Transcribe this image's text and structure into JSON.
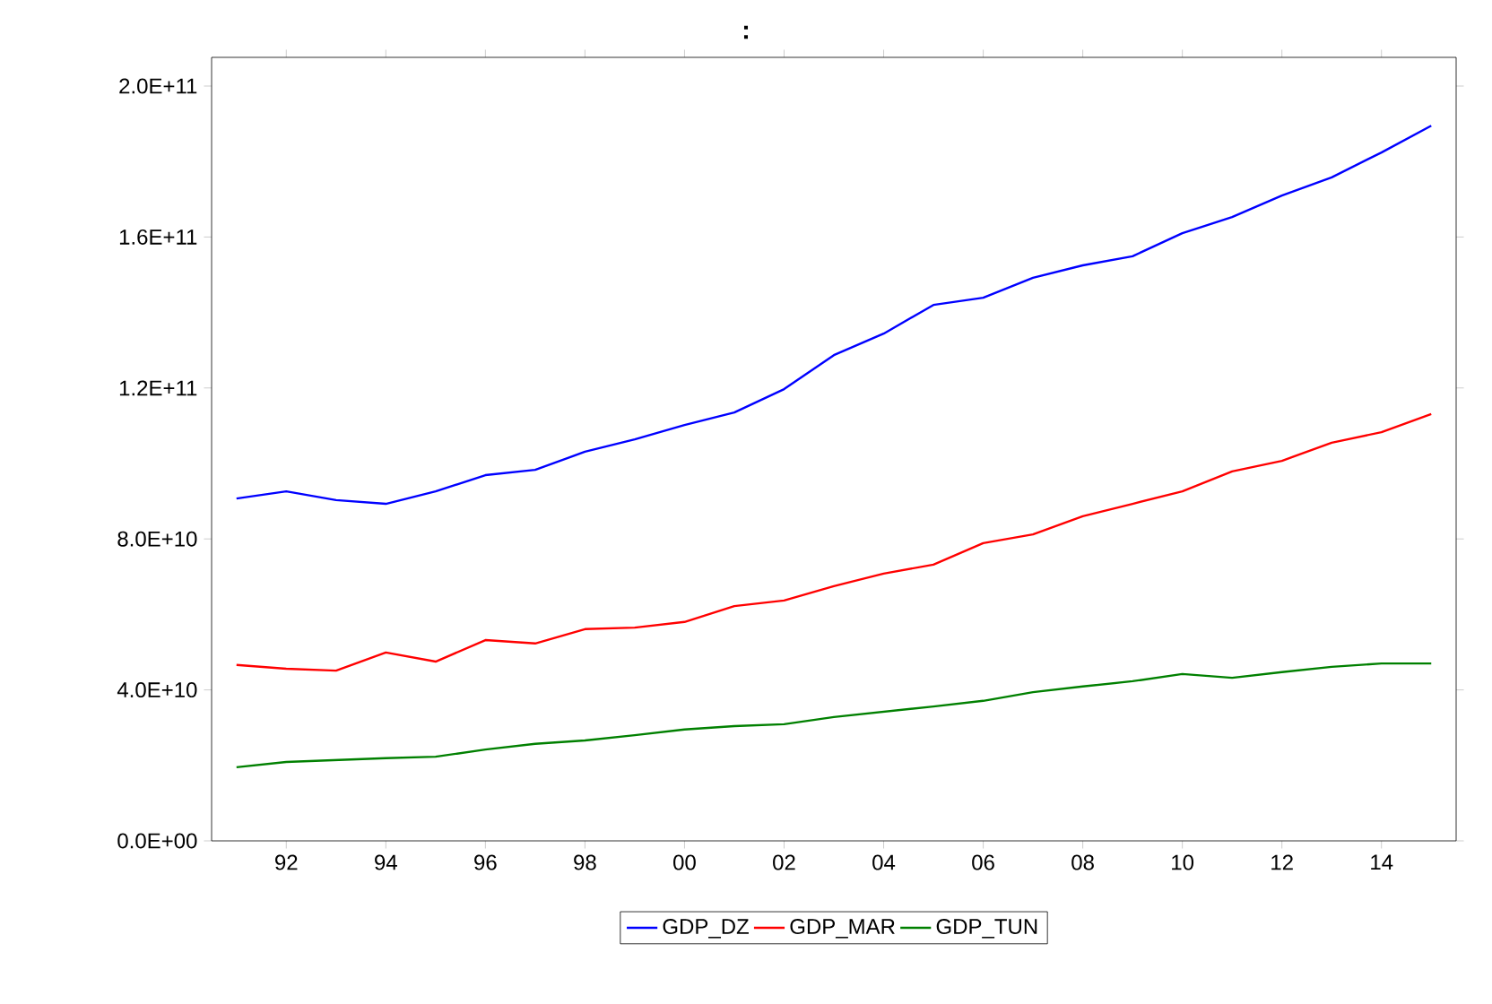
{
  "chart_data": {
    "type": "line",
    "title": ":",
    "x": [
      1991,
      1992,
      1993,
      1994,
      1995,
      1996,
      1997,
      1998,
      1999,
      2000,
      2001,
      2002,
      2003,
      2004,
      2005,
      2006,
      2007,
      2008,
      2009,
      2010,
      2011,
      2012,
      2013,
      2014,
      2015
    ],
    "series": [
      {
        "name": "GDP_DZ",
        "color": "#0000ff",
        "values": [
          90700000000.0,
          92600000000.0,
          90300000000.0,
          89300000000.0,
          92600000000.0,
          96900000000.0,
          98300000000.0,
          103100000000.0,
          106400000000.0,
          110200000000.0,
          113500000000.0,
          119700000000.0,
          128700000000.0,
          134400000000.0,
          142000000000.0,
          143900000000.0,
          149200000000.0,
          152500000000.0,
          154900000000.0,
          161000000000.0,
          165300000000.0,
          171000000000.0,
          175800000000.0,
          182400000000.0,
          189500000000.0
        ]
      },
      {
        "name": "GDP_MAR",
        "color": "#ff0000",
        "values": [
          46600000000.0,
          45600000000.0,
          45100000000.0,
          49900000000.0,
          47500000000.0,
          53200000000.0,
          52300000000.0,
          56100000000.0,
          56500000000.0,
          58000000000.0,
          62200000000.0,
          63700000000.0,
          67500000000.0,
          70800000000.0,
          73200000000.0,
          78900000000.0,
          81200000000.0,
          86000000000.0,
          89300000000.0,
          92600000000.0,
          97900000000.0,
          100700000000.0,
          105500000000.0,
          108300000000.0,
          113100000000.0
        ]
      },
      {
        "name": "GDP_TUN",
        "color": "#008000",
        "values": [
          19500000000.0,
          20900000000.0,
          21400000000.0,
          21900000000.0,
          22300000000.0,
          24200000000.0,
          25700000000.0,
          26600000000.0,
          28000000000.0,
          29500000000.0,
          30400000000.0,
          30900000000.0,
          32800000000.0,
          34200000000.0,
          35600000000.0,
          37100000000.0,
          39400000000.0,
          40900000000.0,
          42300000000.0,
          44200000000.0,
          43200000000.0,
          44700000000.0,
          46100000000.0,
          47000000000.0,
          47000000000.0
        ]
      }
    ],
    "xlim": [
      1990.5,
      2015.5
    ],
    "xticks": [
      {
        "value": 1992,
        "label": "92"
      },
      {
        "value": 1994,
        "label": "94"
      },
      {
        "value": 1996,
        "label": "96"
      },
      {
        "value": 1998,
        "label": "98"
      },
      {
        "value": 2000,
        "label": "00"
      },
      {
        "value": 2002,
        "label": "02"
      },
      {
        "value": 2004,
        "label": "04"
      },
      {
        "value": 2006,
        "label": "06"
      },
      {
        "value": 2008,
        "label": "08"
      },
      {
        "value": 2010,
        "label": "10"
      },
      {
        "value": 2012,
        "label": "12"
      },
      {
        "value": 2014,
        "label": "14"
      }
    ],
    "ylim": [
      0,
      207600000000.0
    ],
    "yticks": [
      {
        "value": 0,
        "label": "0.0E+00"
      },
      {
        "value": 40000000000.0,
        "label": "4.0E+10"
      },
      {
        "value": 80000000000.0,
        "label": "8.0E+10"
      },
      {
        "value": 120000000000.0,
        "label": "1.2E+11"
      },
      {
        "value": 160000000000.0,
        "label": "1.6E+11"
      },
      {
        "value": 200000000000.0,
        "label": "2.0E+11"
      }
    ],
    "grid": false,
    "legend": "bottom",
    "marker": "none",
    "line_style": "solid"
  }
}
